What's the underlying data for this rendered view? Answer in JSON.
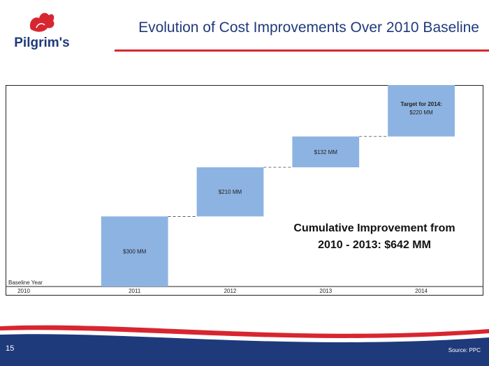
{
  "header": {
    "brand": "Pilgrim's",
    "title": "Evolution of Cost Improvements Over 2010 Baseline"
  },
  "chart_data": {
    "type": "bar",
    "subtype": "waterfall",
    "categories": [
      "2010",
      "2011",
      "2012",
      "2013",
      "2014"
    ],
    "steps": [
      {
        "category": "2011",
        "value": 300,
        "label": "$300 MM"
      },
      {
        "category": "2012",
        "value": 210,
        "label": "$210 MM"
      },
      {
        "category": "2013",
        "value": 132,
        "label": "$132 MM"
      },
      {
        "category": "2014",
        "value": 220,
        "label": "$220 MM",
        "label_prefix": "Target for 2014:"
      }
    ],
    "baseline_label": "Baseline Year",
    "ylim": [
      0,
      862
    ],
    "connectors": "dashed",
    "bar_color": "#8db3e2",
    "callout": {
      "line1": "Cumulative Improvement from",
      "line2": "2010 - 2013:  $642 MM"
    }
  },
  "footer": {
    "page_number": "15",
    "source": "Source: PPC"
  },
  "colors": {
    "navy": "#1f3a7a",
    "red": "#d72630",
    "title": "#1f3a7a"
  }
}
